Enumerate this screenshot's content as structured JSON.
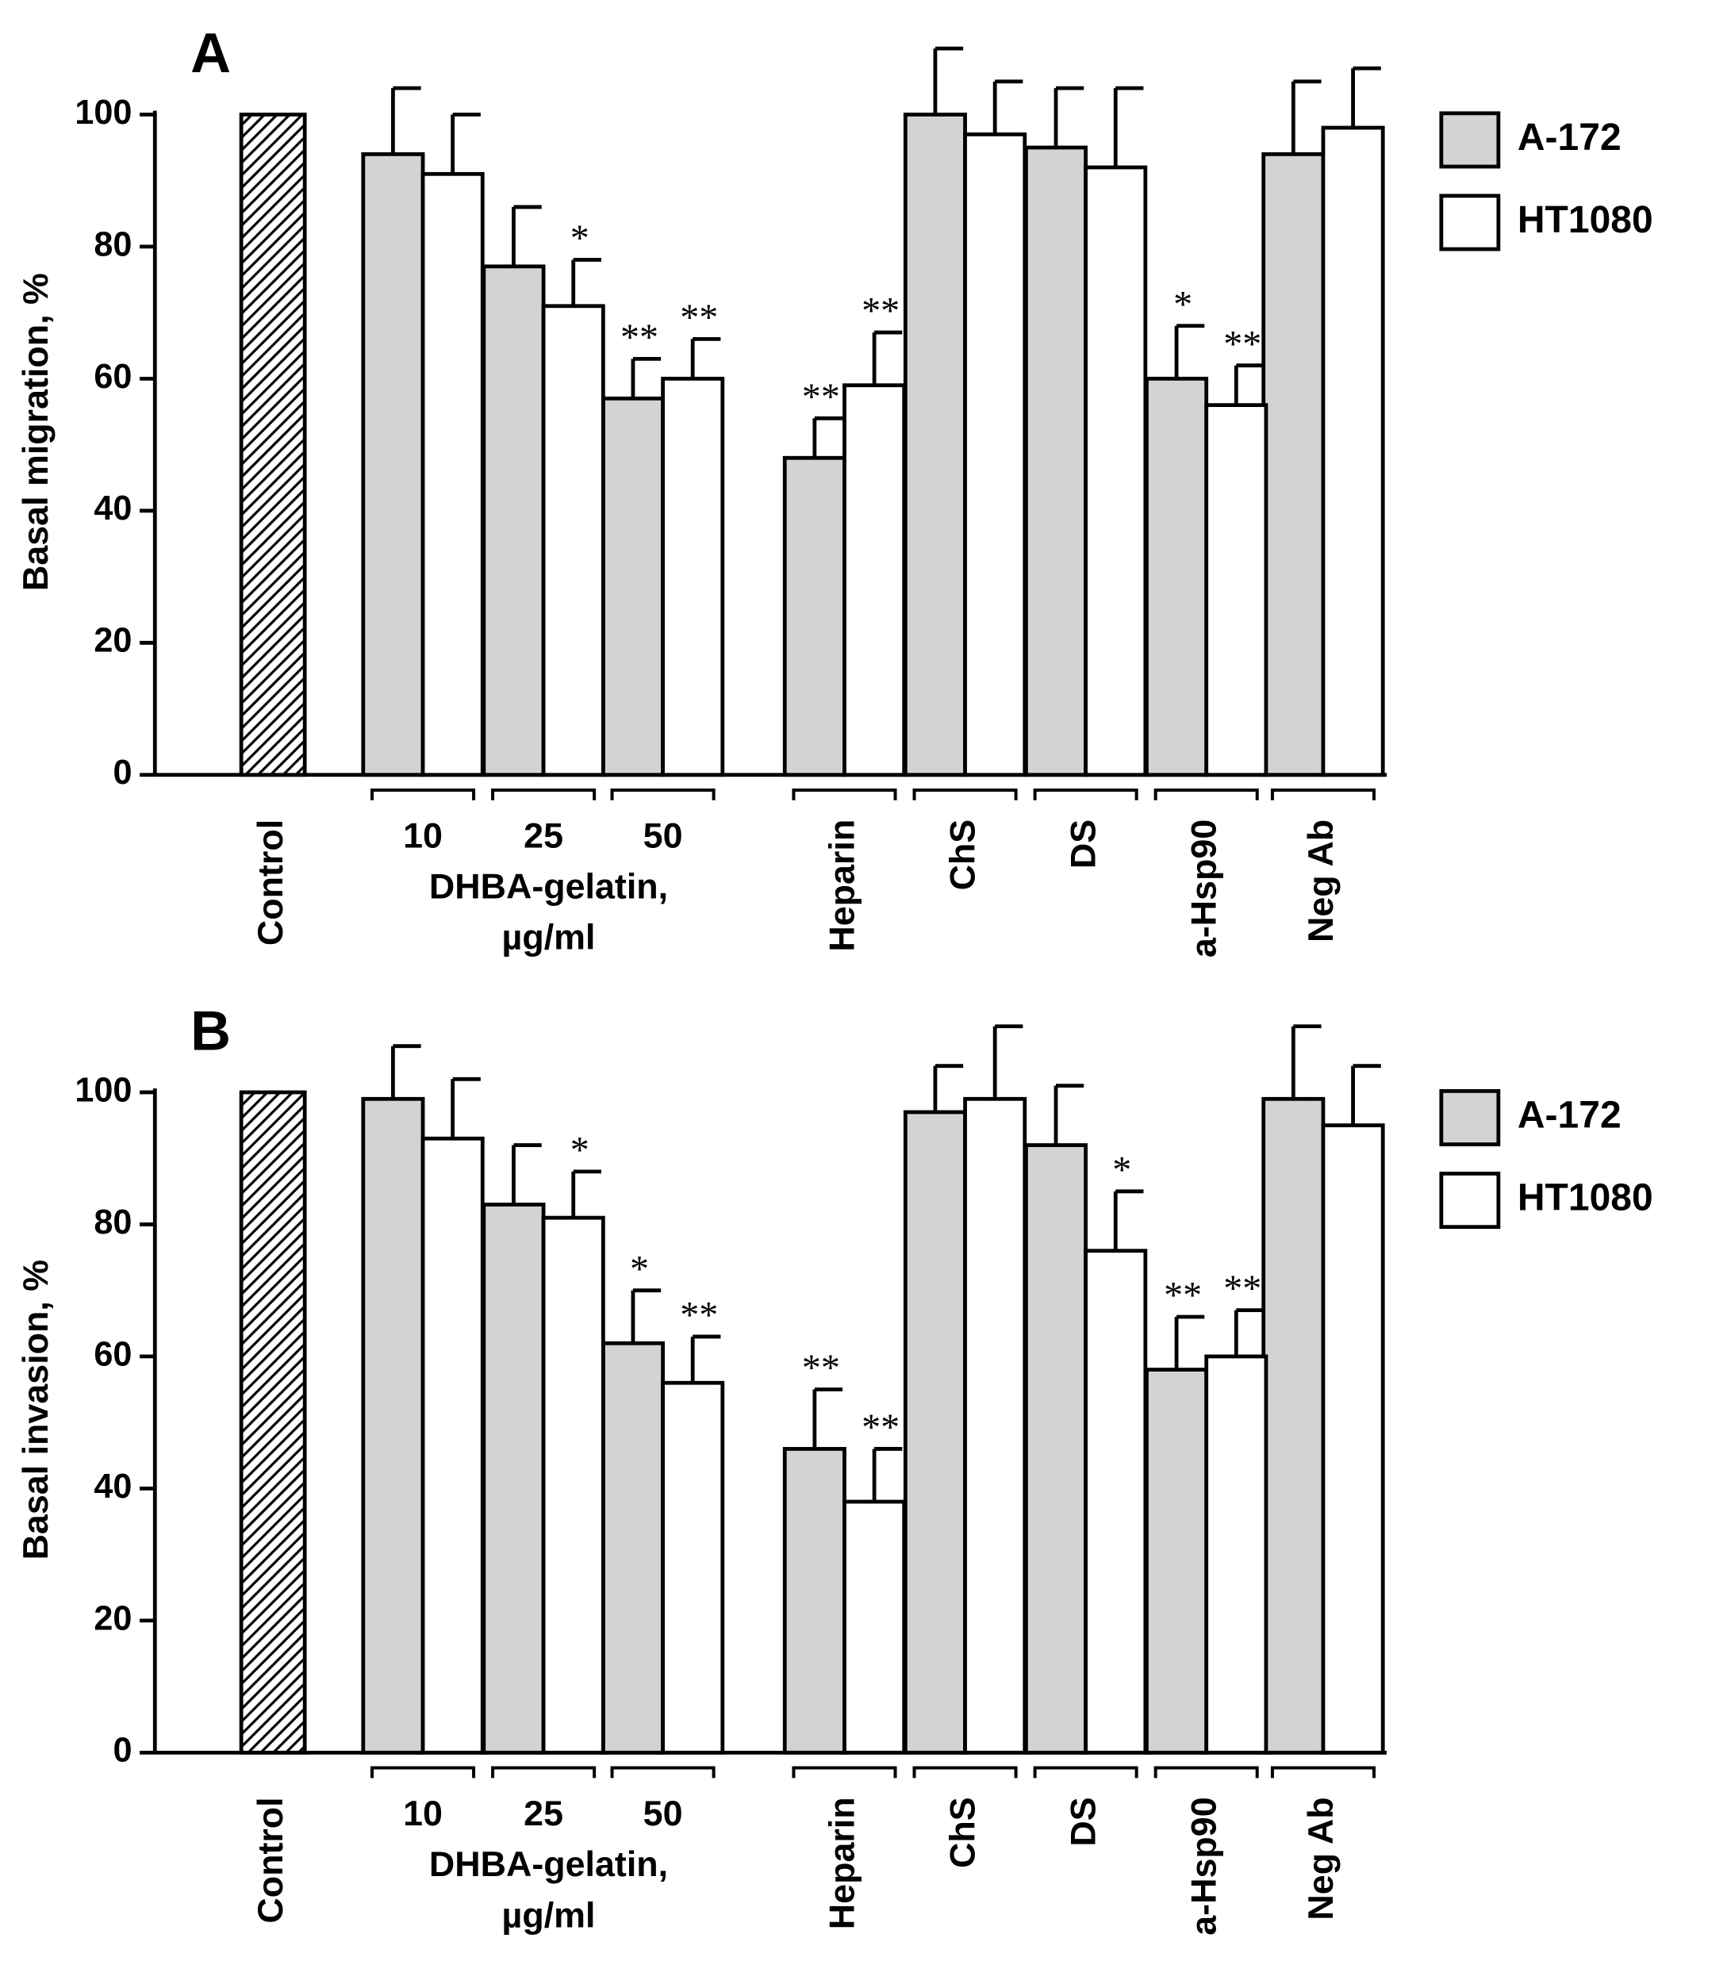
{
  "chart_data": [
    {
      "type": "bar",
      "title": "A",
      "ylabel": "Basal migration, %",
      "categories": [
        "Control",
        "10",
        "25",
        "50",
        "Heparin",
        "ChS",
        "DS",
        "a-Hsp90",
        "Neg Ab"
      ],
      "control_value": 100,
      "annotations": [
        "DHBA-gelatin,",
        "µg/ml"
      ],
      "series": [
        {
          "name": "A-172",
          "color": "#d3d3d3",
          "values": [
            null,
            94,
            77,
            57,
            48,
            100,
            95,
            60,
            94
          ],
          "errors": [
            null,
            10,
            9,
            6,
            6,
            10,
            9,
            8,
            11
          ],
          "significance": [
            null,
            null,
            null,
            "**",
            "**",
            null,
            null,
            "*",
            null
          ]
        },
        {
          "name": "HT1080",
          "color": "#ffffff",
          "values": [
            null,
            91,
            71,
            60,
            59,
            97,
            92,
            56,
            98
          ],
          "errors": [
            null,
            9,
            7,
            6,
            8,
            8,
            12,
            6,
            9
          ],
          "significance": [
            null,
            null,
            "*",
            "**",
            "**",
            null,
            null,
            "**",
            null
          ]
        }
      ],
      "ylim": [
        0,
        100
      ],
      "yticks": [
        0,
        20,
        40,
        60,
        80,
        100
      ]
    },
    {
      "type": "bar",
      "title": "B",
      "ylabel": "Basal invasion, %",
      "categories": [
        "Control",
        "10",
        "25",
        "50",
        "Heparin",
        "ChS",
        "DS",
        "a-Hsp90",
        "Neg Ab"
      ],
      "control_value": 100,
      "annotations": [
        "DHBA-gelatin,",
        "µg/ml"
      ],
      "series": [
        {
          "name": "A-172",
          "color": "#d3d3d3",
          "values": [
            null,
            99,
            83,
            62,
            46,
            97,
            92,
            58,
            99
          ],
          "errors": [
            null,
            8,
            9,
            8,
            9,
            7,
            9,
            8,
            11
          ],
          "significance": [
            null,
            null,
            null,
            "*",
            "**",
            null,
            null,
            "**",
            null
          ]
        },
        {
          "name": "HT1080",
          "color": "#ffffff",
          "values": [
            null,
            93,
            81,
            56,
            38,
            99,
            76,
            60,
            95
          ],
          "errors": [
            null,
            9,
            7,
            7,
            8,
            11,
            9,
            7,
            9
          ],
          "significance": [
            null,
            null,
            "*",
            "**",
            "**",
            null,
            "*",
            "**",
            null
          ]
        }
      ],
      "ylim": [
        0,
        100
      ],
      "yticks": [
        0,
        20,
        40,
        60,
        80,
        100
      ]
    }
  ]
}
